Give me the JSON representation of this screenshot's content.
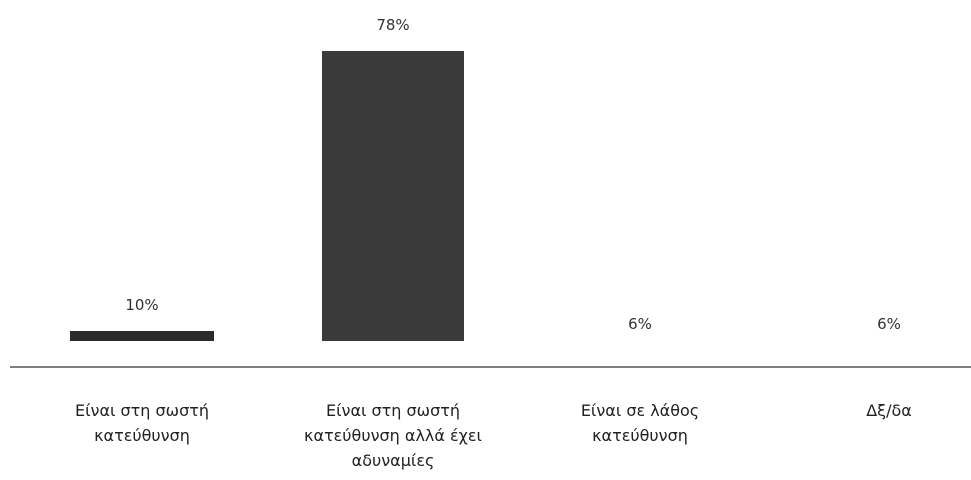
{
  "chart_data": {
    "type": "bar",
    "categories": [
      [
        "Είναι στη σωστή",
        "κατεύθυνση"
      ],
      [
        "Είναι στη σωστή",
        "κατεύθυνση αλλά έχει",
        "αδυναμίες"
      ],
      [
        "Είναι σε λάθος",
        "κατεύθυνση"
      ],
      [
        "Δξ/δα"
      ]
    ],
    "values": [
      10,
      78,
      6,
      6
    ],
    "value_labels": [
      "10%",
      "78%",
      "6%",
      "6%"
    ],
    "title": "",
    "xlabel": "",
    "ylabel": "",
    "ylim": [
      0,
      80
    ],
    "grid": false,
    "colors": {
      "bar": "#2b2b2b",
      "bar_fill": "#3a3a3a",
      "baseline": "#555555"
    }
  }
}
